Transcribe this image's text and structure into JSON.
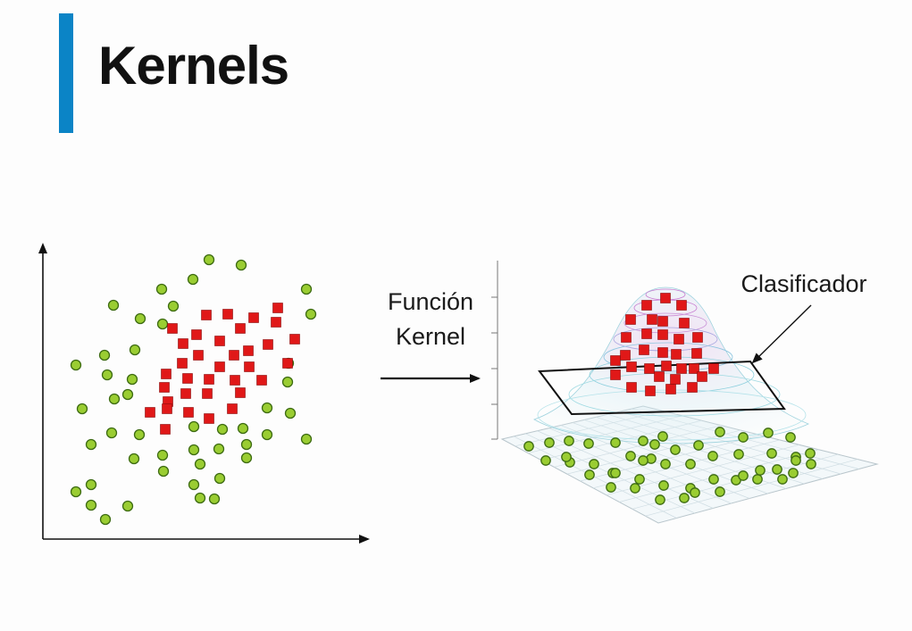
{
  "slide": {
    "title": "Kernels",
    "accent_color": "#0b84c6"
  },
  "diagram": {
    "arrow_label_line1": "Función",
    "arrow_label_line2": "Kernel",
    "classifier_label": "Clasificador"
  },
  "legend": {
    "class_a": {
      "shape": "circle",
      "color": "#9acd32"
    },
    "class_b": {
      "shape": "square",
      "color": "#e01818"
    }
  }
}
